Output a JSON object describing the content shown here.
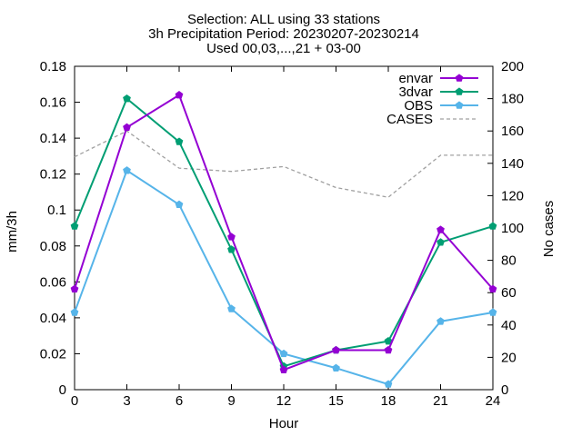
{
  "chart_data": {
    "type": "line",
    "title_lines": [
      "Selection: ALL using    33 stations",
      "3h Precipitation   Period: 20230207-20230214",
      "Used 00,03,...,21 + 03-00"
    ],
    "xlabel": "Hour",
    "ylabel": "mm/3h",
    "y2label": "No cases",
    "x": [
      0,
      3,
      6,
      9,
      12,
      15,
      18,
      21,
      24
    ],
    "xlim": [
      0,
      24
    ],
    "ylim": [
      0,
      0.18
    ],
    "y2lim": [
      0,
      200
    ],
    "xticks": [
      "0",
      "3",
      "6",
      "9",
      "12",
      "15",
      "18",
      "21",
      "24"
    ],
    "yticks": [
      "0",
      "0.02",
      "0.04",
      "0.06",
      "0.08",
      "0.1",
      "0.12",
      "0.14",
      "0.16",
      "0.18"
    ],
    "y2ticks": [
      "0",
      "20",
      "40",
      "60",
      "80",
      "100",
      "120",
      "140",
      "160",
      "180",
      "200"
    ],
    "grid": false,
    "legend_position": "top-right",
    "series": [
      {
        "name": "envar",
        "axis": "y",
        "color": "#9400d3",
        "marker": "pentagon",
        "values": [
          0.056,
          0.146,
          0.164,
          0.085,
          0.011,
          0.022,
          0.022,
          0.089,
          0.056
        ]
      },
      {
        "name": "3dvar",
        "axis": "y",
        "color": "#009e73",
        "marker": "pentagon",
        "values": [
          0.091,
          0.162,
          0.138,
          0.078,
          0.013,
          0.022,
          0.027,
          0.082,
          0.091
        ]
      },
      {
        "name": "OBS",
        "axis": "y",
        "color": "#56b4e9",
        "marker": "pentagon",
        "values": [
          0.043,
          0.122,
          0.103,
          0.045,
          0.02,
          0.012,
          0.003,
          0.038,
          0.043
        ]
      },
      {
        "name": "CASES",
        "axis": "y2",
        "color": "#a0a0a0",
        "dashed": true,
        "values": [
          144,
          160,
          137,
          135,
          138,
          125,
          119,
          145,
          145
        ]
      }
    ]
  }
}
